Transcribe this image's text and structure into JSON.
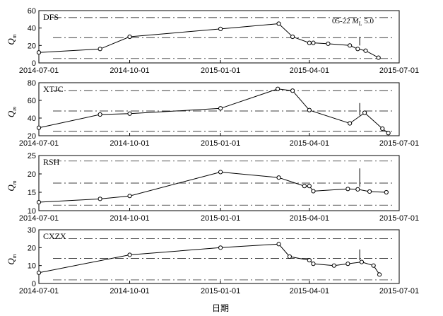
{
  "figure": {
    "xlabel": "日期",
    "x_ticks": [
      "2014-07-01",
      "2014-10-01",
      "2015-01-01",
      "2015-04-01",
      "2015-07-01"
    ],
    "annotation": {
      "date": "05-22",
      "symbol": "M",
      "subscript": "L",
      "magnitude": "5.0",
      "event_date": "2015-05-22"
    }
  },
  "chart_data": [
    {
      "type": "line",
      "station": "DFS",
      "ylabel": "Q",
      "ylabel_sub": "m",
      "ylim": [
        0,
        60
      ],
      "yticks": [
        0,
        20,
        40,
        60
      ],
      "ref_lines": [
        5,
        29,
        52
      ],
      "x": [
        "2014-07-01",
        "2014-09-01",
        "2014-10-01",
        "2015-01-01",
        "2015-03-01",
        "2015-03-15",
        "2015-04-01",
        "2015-04-05",
        "2015-04-20",
        "2015-05-12",
        "2015-05-20",
        "2015-05-28",
        "2015-06-10"
      ],
      "values": [
        12,
        16,
        30,
        39,
        45,
        30,
        23,
        23,
        22,
        20,
        16,
        14,
        6
      ],
      "eq_marker_range": [
        20,
        30
      ]
    },
    {
      "type": "line",
      "station": "XTJC",
      "ylabel": "Q",
      "ylabel_sub": "m",
      "ylim": [
        20,
        80
      ],
      "yticks": [
        20,
        40,
        60,
        80
      ],
      "ref_lines": [
        25,
        48,
        71
      ],
      "x": [
        "2014-07-01",
        "2014-09-01",
        "2014-10-01",
        "2015-01-01",
        "2015-02-28",
        "2015-03-15",
        "2015-04-01",
        "2015-05-12",
        "2015-05-27",
        "2015-06-14",
        "2015-06-20"
      ],
      "values": [
        29,
        44,
        45,
        51,
        73,
        71,
        49,
        34,
        46,
        28,
        23
      ],
      "eq_marker_range": [
        43,
        57
      ]
    },
    {
      "type": "line",
      "station": "RSH",
      "ylabel": "Q",
      "ylabel_sub": "m",
      "ylim": [
        10,
        25
      ],
      "yticks": [
        10,
        15,
        20,
        25
      ],
      "ref_lines": [
        11.5,
        17.5,
        23.5
      ],
      "x": [
        "2014-07-01",
        "2014-09-01",
        "2014-10-01",
        "2015-01-01",
        "2015-03-01",
        "2015-03-27",
        "2015-04-01",
        "2015-04-05",
        "2015-05-10",
        "2015-05-20",
        "2015-06-01",
        "2015-06-18"
      ],
      "values": [
        12.3,
        13.2,
        14,
        20.5,
        19,
        16.7,
        16.7,
        15.3,
        15.9,
        15.8,
        15.2,
        15
      ],
      "eq_marker_range": [
        16.5,
        21.5
      ]
    },
    {
      "type": "line",
      "station": "CXZX",
      "ylabel": "Q",
      "ylabel_sub": "m",
      "ylim": [
        0,
        30
      ],
      "yticks": [
        0,
        10,
        20,
        30
      ],
      "ref_lines": [
        2,
        14,
        25
      ],
      "x": [
        "2014-07-01",
        "2014-10-01",
        "2015-01-01",
        "2015-03-01",
        "2015-03-12",
        "2015-04-01",
        "2015-04-05",
        "2015-04-26",
        "2015-05-10",
        "2015-05-24",
        "2015-06-05",
        "2015-06-11"
      ],
      "values": [
        6,
        16,
        20,
        22,
        15,
        13,
        11,
        10,
        11,
        12,
        10,
        5
      ],
      "eq_marker_range": [
        13,
        19
      ]
    }
  ]
}
